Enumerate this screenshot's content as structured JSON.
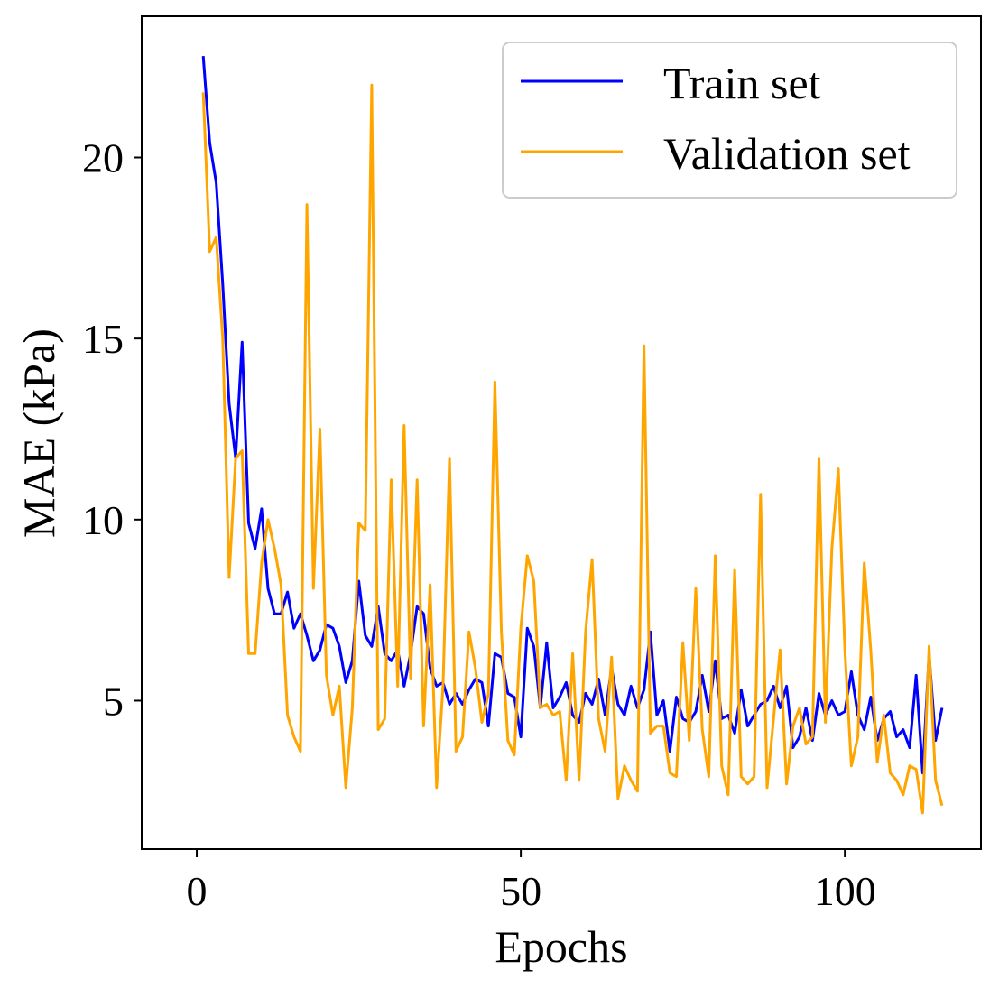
{
  "chart_data": {
    "type": "line",
    "title": "",
    "xlabel": "Epochs",
    "ylabel": "MAE (kPa)",
    "xlim": [
      -8.5,
      121
    ],
    "ylim": [
      0.9,
      23.9
    ],
    "x_ticks": [
      0,
      50,
      100
    ],
    "y_ticks": [
      5,
      10,
      15,
      20
    ],
    "grid": false,
    "legend_position": "top-right",
    "x": [
      1,
      2,
      3,
      4,
      5,
      6,
      7,
      8,
      9,
      10,
      11,
      12,
      13,
      14,
      15,
      16,
      17,
      18,
      19,
      20,
      21,
      22,
      23,
      24,
      25,
      26,
      27,
      28,
      29,
      30,
      31,
      32,
      33,
      34,
      35,
      36,
      37,
      38,
      39,
      40,
      41,
      42,
      43,
      44,
      45,
      46,
      47,
      48,
      49,
      50,
      51,
      52,
      53,
      54,
      55,
      56,
      57,
      58,
      59,
      60,
      61,
      62,
      63,
      64,
      65,
      66,
      67,
      68,
      69,
      70,
      71,
      72,
      73,
      74,
      75,
      76,
      77,
      78,
      79,
      80,
      81,
      82,
      83,
      84,
      85,
      86,
      87,
      88,
      89,
      90,
      91,
      92,
      93,
      94,
      95,
      96,
      97,
      98,
      99,
      100,
      101,
      102,
      103,
      104,
      105,
      106,
      107,
      108,
      109,
      110,
      111,
      112,
      113,
      114,
      115
    ],
    "series": [
      {
        "name": "Train set",
        "color": "#0000ff",
        "values": [
          22.8,
          20.4,
          19.3,
          16.5,
          13.2,
          11.7,
          14.9,
          9.9,
          9.2,
          10.3,
          8.1,
          7.4,
          7.4,
          8.0,
          7.0,
          7.4,
          6.8,
          6.1,
          6.4,
          7.1,
          7.0,
          6.5,
          5.5,
          6.1,
          8.3,
          6.8,
          6.5,
          7.6,
          6.3,
          6.1,
          6.4,
          5.4,
          6.3,
          7.6,
          7.4,
          5.9,
          5.4,
          5.5,
          4.9,
          5.2,
          4.9,
          5.3,
          5.6,
          5.5,
          4.3,
          6.3,
          6.2,
          5.2,
          5.1,
          4.0,
          7.0,
          6.5,
          4.8,
          6.6,
          4.8,
          5.1,
          5.5,
          4.6,
          4.4,
          5.2,
          4.9,
          5.6,
          4.6,
          5.9,
          4.9,
          4.6,
          5.4,
          4.8,
          5.3,
          6.9,
          4.6,
          5.0,
          3.6,
          5.1,
          4.5,
          4.4,
          4.7,
          5.7,
          4.7,
          6.1,
          4.5,
          4.6,
          4.1,
          5.3,
          4.3,
          4.6,
          4.9,
          5.0,
          5.4,
          4.8,
          5.4,
          3.7,
          4.0,
          4.8,
          3.9,
          5.2,
          4.6,
          5.0,
          4.6,
          4.7,
          5.8,
          4.6,
          4.2,
          5.1,
          3.9,
          4.5,
          4.7,
          4.0,
          4.2,
          3.7,
          5.7,
          3.0,
          6.3,
          3.9,
          4.8
        ]
      },
      {
        "name": "Validation set",
        "color": "#ffa500",
        "values": [
          21.8,
          17.4,
          17.8,
          15.0,
          8.4,
          11.7,
          11.9,
          6.3,
          6.3,
          8.8,
          10.0,
          9.2,
          8.2,
          4.6,
          4.0,
          3.6,
          18.7,
          8.1,
          12.5,
          5.7,
          4.6,
          5.4,
          2.6,
          4.8,
          9.9,
          9.7,
          22.0,
          4.2,
          4.5,
          11.1,
          5.4,
          12.6,
          5.6,
          11.1,
          4.3,
          8.2,
          2.6,
          5.4,
          11.7,
          3.6,
          4.0,
          6.9,
          5.9,
          4.4,
          5.2,
          13.8,
          6.9,
          3.9,
          3.5,
          7.0,
          9.0,
          8.3,
          4.8,
          4.9,
          4.6,
          4.7,
          2.8,
          6.3,
          2.8,
          6.9,
          8.9,
          4.5,
          3.6,
          6.2,
          2.3,
          3.2,
          2.8,
          2.5,
          14.8,
          4.1,
          4.3,
          4.3,
          3.0,
          2.9,
          6.6,
          3.9,
          8.1,
          4.2,
          2.9,
          9.0,
          3.2,
          2.4,
          8.6,
          2.9,
          2.7,
          2.9,
          10.7,
          2.6,
          4.5,
          6.4,
          2.7,
          4.3,
          4.8,
          3.8,
          4.0,
          11.7,
          4.4,
          9.2,
          11.4,
          6.4,
          3.2,
          4.0,
          8.8,
          6.4,
          3.3,
          4.6,
          3.0,
          2.8,
          2.4,
          3.2,
          3.1,
          1.9,
          6.5,
          2.8,
          2.1
        ]
      }
    ]
  }
}
